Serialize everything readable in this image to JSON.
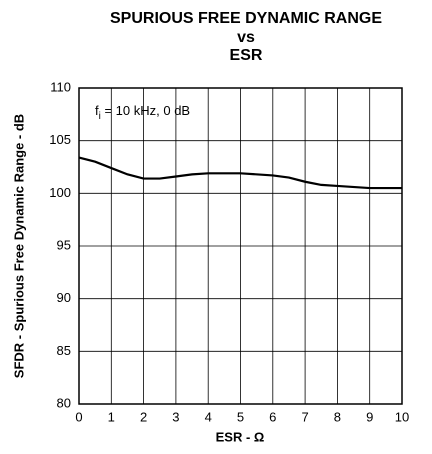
{
  "chart_data": {
    "type": "line",
    "title": [
      "SPURIOUS FREE DYNAMIC RANGE",
      "vs",
      "ESR"
    ],
    "xlabel": "ESR - Ω",
    "ylabel": "SFDR - Spurious Free Dynamic Range - dB",
    "annotation": [
      "f",
      "i",
      " = 10 kHz, 0 dB"
    ],
    "xlim": [
      0,
      10
    ],
    "xticks": [
      0,
      1,
      2,
      3,
      4,
      5,
      6,
      7,
      8,
      9,
      10
    ],
    "ylim": [
      80,
      110
    ],
    "yticks": [
      80,
      85,
      90,
      95,
      100,
      105,
      110
    ],
    "grid": true,
    "series": [
      {
        "color": "#000000",
        "x": [
          0,
          0.5,
          1,
          1.5,
          2,
          2.5,
          3,
          3.5,
          4,
          5,
          6,
          6.5,
          7,
          7.5,
          8,
          9,
          10
        ],
        "values": [
          103.4,
          103,
          102.4,
          101.8,
          101.4,
          101.4,
          101.6,
          101.8,
          101.9,
          101.9,
          101.7,
          101.5,
          101.1,
          100.8,
          100.7,
          100.5,
          100.5
        ]
      }
    ]
  }
}
